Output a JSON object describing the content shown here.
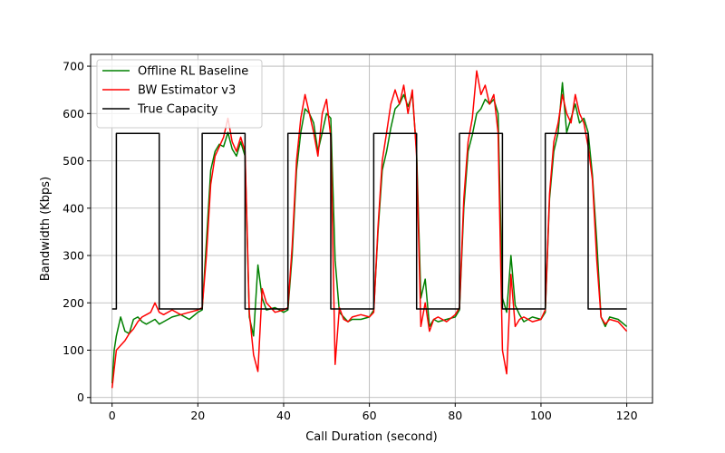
{
  "chart_data": {
    "type": "line",
    "title": "",
    "xlabel": "Call Duration (second)",
    "ylabel": "Bandwidth (Kbps)",
    "xlim": [
      -5,
      126
    ],
    "ylim": [
      -12,
      725
    ],
    "xticks": [
      0,
      20,
      40,
      60,
      80,
      100,
      120
    ],
    "yticks": [
      0,
      100,
      200,
      300,
      400,
      500,
      600,
      700
    ],
    "grid": true,
    "legend_position": "top-left",
    "series": [
      {
        "name": "Offline RL Baseline",
        "color": "#008000",
        "x": [
          0,
          0.5,
          1,
          2,
          3,
          4,
          5,
          6,
          7,
          8,
          9,
          10,
          11,
          12,
          14,
          16,
          18,
          20,
          21,
          22,
          23,
          24,
          25,
          26,
          27,
          28,
          29,
          30,
          31,
          32,
          33,
          34,
          35,
          36,
          38,
          40,
          41,
          42,
          43,
          44,
          45,
          46,
          47,
          48,
          49,
          50,
          51,
          52,
          53,
          54,
          55,
          56,
          58,
          60,
          61,
          62,
          63,
          64,
          65,
          66,
          67,
          68,
          69,
          70,
          71,
          72,
          73,
          74,
          75,
          76,
          78,
          80,
          81,
          82,
          83,
          84,
          85,
          86,
          87,
          88,
          89,
          90,
          91,
          92,
          93,
          94,
          95,
          96,
          98,
          100,
          101,
          102,
          103,
          104,
          105,
          106,
          107,
          108,
          109,
          110,
          111,
          112,
          113,
          114,
          115,
          116,
          118,
          120
        ],
        "y": [
          30,
          100,
          130,
          170,
          140,
          135,
          165,
          170,
          160,
          155,
          160,
          165,
          155,
          160,
          170,
          175,
          165,
          180,
          185,
          330,
          480,
          520,
          535,
          530,
          560,
          525,
          510,
          540,
          510,
          170,
          130,
          280,
          210,
          185,
          190,
          180,
          185,
          300,
          480,
          560,
          610,
          600,
          580,
          520,
          560,
          600,
          590,
          290,
          180,
          170,
          160,
          165,
          165,
          170,
          185,
          350,
          480,
          520,
          570,
          610,
          620,
          640,
          615,
          640,
          520,
          210,
          250,
          150,
          165,
          160,
          165,
          170,
          185,
          400,
          520,
          555,
          600,
          610,
          630,
          620,
          630,
          600,
          210,
          180,
          300,
          195,
          175,
          160,
          170,
          165,
          180,
          420,
          520,
          560,
          665,
          560,
          590,
          620,
          580,
          590,
          560,
          470,
          330,
          170,
          150,
          170,
          165,
          150
        ]
      },
      {
        "name": "BW Estimator v3",
        "color": "#ff0000",
        "x": [
          0,
          0.5,
          1,
          2,
          3,
          4,
          5,
          6,
          7,
          8,
          9,
          10,
          11,
          12,
          14,
          16,
          18,
          20,
          21,
          22,
          23,
          24,
          25,
          26,
          27,
          28,
          29,
          30,
          31,
          32,
          33,
          34,
          35,
          36,
          38,
          40,
          41,
          42,
          43,
          44,
          45,
          46,
          47,
          48,
          49,
          50,
          51,
          52,
          53,
          54,
          55,
          56,
          58,
          60,
          61,
          62,
          63,
          64,
          65,
          66,
          67,
          68,
          69,
          70,
          71,
          72,
          73,
          74,
          75,
          76,
          78,
          80,
          81,
          82,
          83,
          84,
          85,
          86,
          87,
          88,
          89,
          90,
          91,
          92,
          93,
          94,
          95,
          96,
          98,
          100,
          101,
          102,
          103,
          104,
          105,
          106,
          107,
          108,
          109,
          110,
          111,
          112,
          113,
          114,
          115,
          116,
          118,
          120
        ],
        "y": [
          20,
          60,
          100,
          110,
          120,
          135,
          145,
          160,
          170,
          175,
          180,
          200,
          180,
          175,
          185,
          175,
          180,
          185,
          190,
          300,
          450,
          510,
          530,
          550,
          590,
          540,
          520,
          550,
          520,
          180,
          90,
          55,
          230,
          200,
          180,
          185,
          190,
          320,
          500,
          590,
          640,
          600,
          560,
          510,
          600,
          630,
          550,
          70,
          190,
          165,
          160,
          170,
          175,
          170,
          180,
          360,
          500,
          560,
          620,
          650,
          620,
          660,
          600,
          650,
          510,
          150,
          200,
          140,
          165,
          170,
          160,
          175,
          190,
          420,
          540,
          590,
          690,
          640,
          660,
          620,
          640,
          560,
          100,
          50,
          260,
          150,
          165,
          170,
          160,
          165,
          185,
          430,
          540,
          580,
          640,
          600,
          580,
          640,
          600,
          580,
          530,
          460,
          290,
          170,
          155,
          165,
          160,
          140
        ]
      },
      {
        "name": "True Capacity",
        "color": "#000000",
        "step_x": [
          0,
          1,
          1,
          11,
          11,
          21,
          21,
          31,
          31,
          41,
          41,
          51,
          51,
          61,
          61,
          71,
          71,
          81,
          81,
          91,
          91,
          101,
          101,
          111,
          111,
          120
        ],
        "step_y": [
          187,
          187,
          558,
          558,
          187,
          187,
          558,
          558,
          187,
          187,
          558,
          558,
          187,
          187,
          558,
          558,
          187,
          187,
          558,
          558,
          187,
          187,
          558,
          558,
          187,
          187
        ]
      }
    ]
  }
}
